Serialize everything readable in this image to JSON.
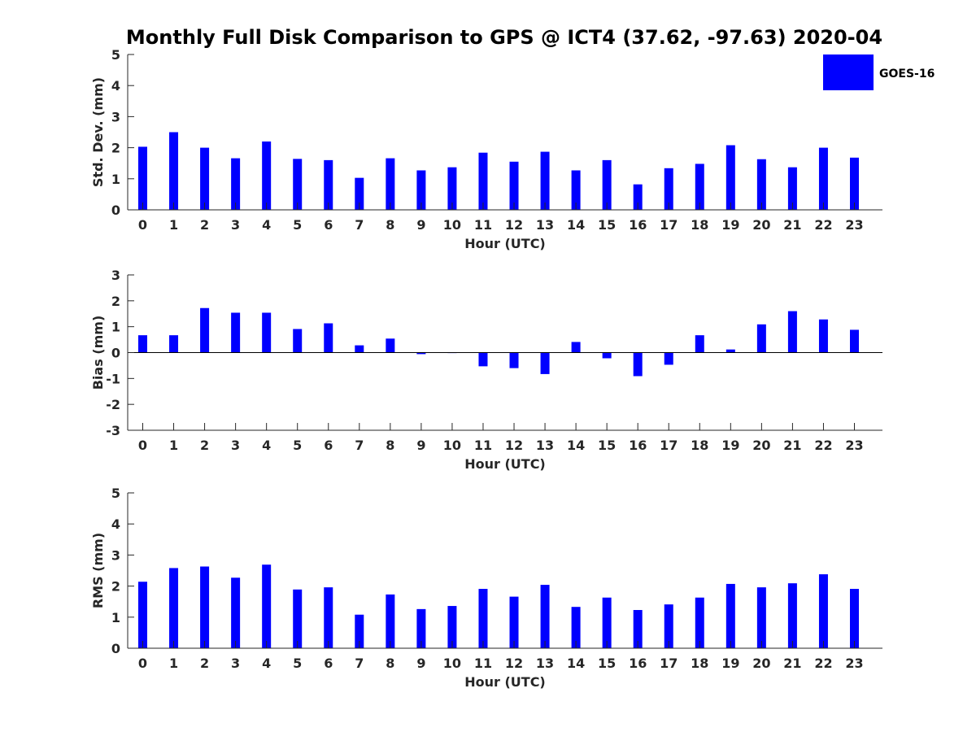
{
  "title": "Monthly Full Disk Comparison to GPS @ ICT4 (37.62, -97.63) 2020-04",
  "legend": {
    "label": "GOES-16",
    "color": "#0000ff",
    "placement": "top-right"
  },
  "chart_data": [
    {
      "type": "bar",
      "series_name": "GOES-16",
      "xlabel": "Hour (UTC)",
      "ylabel": "Std. Dev. (mm)",
      "ylim": [
        0,
        5
      ],
      "yticks": [
        0,
        1,
        2,
        3,
        4,
        5
      ],
      "categories": [
        "0",
        "1",
        "2",
        "3",
        "4",
        "5",
        "6",
        "7",
        "8",
        "9",
        "10",
        "11",
        "12",
        "13",
        "14",
        "15",
        "16",
        "17",
        "18",
        "19",
        "20",
        "21",
        "22",
        "23"
      ],
      "values": [
        2.03,
        2.5,
        2.0,
        1.66,
        2.2,
        1.64,
        1.6,
        1.03,
        1.66,
        1.27,
        1.37,
        1.84,
        1.55,
        1.87,
        1.27,
        1.6,
        0.82,
        1.34,
        1.48,
        2.08,
        1.63,
        1.37,
        2.0,
        1.68
      ],
      "color": "#0000ff"
    },
    {
      "type": "bar",
      "series_name": "GOES-16",
      "xlabel": "Hour (UTC)",
      "ylabel": "Bias (mm)",
      "ylim": [
        -3,
        3
      ],
      "yticks": [
        -3,
        -2,
        -1,
        0,
        1,
        2,
        3
      ],
      "categories": [
        "0",
        "1",
        "2",
        "3",
        "4",
        "5",
        "6",
        "7",
        "8",
        "9",
        "10",
        "11",
        "12",
        "13",
        "14",
        "15",
        "16",
        "17",
        "18",
        "19",
        "20",
        "21",
        "22",
        "23"
      ],
      "values": [
        0.67,
        0.67,
        1.72,
        1.54,
        1.54,
        0.91,
        1.13,
        0.28,
        0.54,
        -0.06,
        -0.01,
        -0.53,
        -0.6,
        -0.83,
        0.41,
        -0.22,
        -0.91,
        -0.47,
        0.67,
        0.12,
        1.09,
        1.6,
        1.28,
        0.88
      ],
      "color": "#0000ff"
    },
    {
      "type": "bar",
      "series_name": "GOES-16",
      "xlabel": "Hour (UTC)",
      "ylabel": "RMS (mm)",
      "ylim": [
        0,
        5
      ],
      "yticks": [
        0,
        1,
        2,
        3,
        4,
        5
      ],
      "categories": [
        "0",
        "1",
        "2",
        "3",
        "4",
        "5",
        "6",
        "7",
        "8",
        "9",
        "10",
        "11",
        "12",
        "13",
        "14",
        "15",
        "16",
        "17",
        "18",
        "19",
        "20",
        "21",
        "22",
        "23"
      ],
      "values": [
        2.14,
        2.58,
        2.63,
        2.27,
        2.69,
        1.89,
        1.96,
        1.08,
        1.73,
        1.26,
        1.36,
        1.91,
        1.66,
        2.04,
        1.33,
        1.63,
        1.23,
        1.41,
        1.63,
        2.07,
        1.96,
        2.09,
        2.38,
        1.91
      ],
      "color": "#0000ff"
    }
  ]
}
